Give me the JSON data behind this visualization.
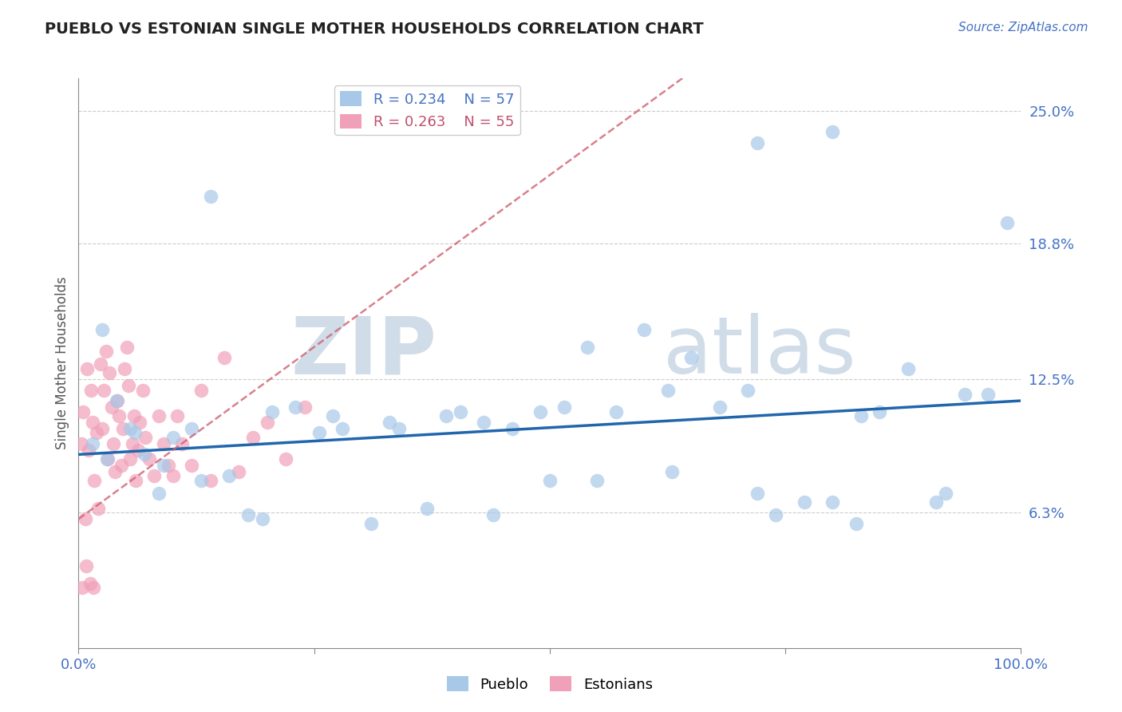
{
  "title": "PUEBLO VS ESTONIAN SINGLE MOTHER HOUSEHOLDS CORRELATION CHART",
  "source": "Source: ZipAtlas.com",
  "xlabel": "",
  "ylabel": "Single Mother Households",
  "xlim": [
    0,
    100
  ],
  "ylim": [
    0,
    26.5
  ],
  "yticks_right": [
    6.3,
    12.5,
    18.8,
    25.0
  ],
  "ytick_labels_right": [
    "6.3%",
    "12.5%",
    "18.8%",
    "25.0%"
  ],
  "xticks": [
    0,
    25,
    50,
    75,
    100
  ],
  "xtick_labels": [
    "0.0%",
    "",
    "",
    "",
    "100.0%"
  ],
  "legend_label1": "R = 0.234    N = 57",
  "legend_label2": "R = 0.263    N = 55",
  "legend_bottom": [
    "Pueblo",
    "Estonians"
  ],
  "pueblo_color": "#a8c8e8",
  "estonian_color": "#f0a0b8",
  "pueblo_line_color": "#2166ac",
  "estonian_line_color": "#d06070",
  "watermark_zip": "ZIP",
  "watermark_atlas": "atlas",
  "watermark_color": "#d0dde8",
  "background_color": "#ffffff",
  "pueblo_x": [
    1.5,
    2.5,
    4.0,
    5.5,
    7.0,
    8.5,
    10.0,
    12.0,
    14.0,
    16.0,
    18.0,
    20.5,
    23.0,
    25.5,
    28.0,
    31.0,
    34.0,
    37.0,
    40.5,
    43.0,
    46.0,
    49.0,
    51.5,
    54.0,
    57.0,
    60.0,
    62.5,
    65.0,
    68.0,
    71.0,
    74.0,
    77.0,
    80.0,
    82.5,
    85.0,
    88.0,
    91.0,
    94.0,
    96.5,
    98.5,
    3.0,
    6.0,
    9.0,
    13.0,
    19.5,
    27.0,
    33.0,
    39.0,
    44.0,
    50.0,
    55.0,
    63.0,
    72.0,
    83.0,
    92.0,
    72.0,
    80.0
  ],
  "pueblo_y": [
    9.5,
    14.8,
    11.5,
    10.2,
    9.0,
    7.2,
    9.8,
    10.2,
    21.0,
    8.0,
    6.2,
    11.0,
    11.2,
    10.0,
    10.2,
    5.8,
    10.2,
    6.5,
    11.0,
    10.5,
    10.2,
    11.0,
    11.2,
    14.0,
    11.0,
    14.8,
    12.0,
    13.5,
    11.2,
    12.0,
    6.2,
    6.8,
    6.8,
    5.8,
    11.0,
    13.0,
    6.8,
    11.8,
    11.8,
    19.8,
    8.8,
    10.0,
    8.5,
    7.8,
    6.0,
    10.8,
    10.5,
    10.8,
    6.2,
    7.8,
    7.8,
    8.2,
    7.2,
    10.8,
    7.2,
    23.5,
    24.0
  ],
  "estonian_x": [
    0.3,
    0.5,
    0.7,
    0.9,
    1.1,
    1.3,
    1.5,
    1.7,
    1.9,
    2.1,
    2.3,
    2.5,
    2.7,
    2.9,
    3.1,
    3.3,
    3.5,
    3.7,
    3.9,
    4.1,
    4.3,
    4.5,
    4.7,
    4.9,
    5.1,
    5.3,
    5.5,
    5.7,
    5.9,
    6.1,
    6.3,
    6.5,
    6.8,
    7.1,
    7.5,
    8.0,
    8.5,
    9.0,
    9.5,
    10.0,
    10.5,
    11.0,
    12.0,
    13.0,
    14.0,
    15.5,
    17.0,
    18.5,
    20.0,
    22.0,
    24.0,
    0.4,
    0.8,
    1.2,
    1.6
  ],
  "estonian_y": [
    9.5,
    11.0,
    6.0,
    13.0,
    9.2,
    12.0,
    10.5,
    7.8,
    10.0,
    6.5,
    13.2,
    10.2,
    12.0,
    13.8,
    8.8,
    12.8,
    11.2,
    9.5,
    8.2,
    11.5,
    10.8,
    8.5,
    10.2,
    13.0,
    14.0,
    12.2,
    8.8,
    9.5,
    10.8,
    7.8,
    9.2,
    10.5,
    12.0,
    9.8,
    8.8,
    8.0,
    10.8,
    9.5,
    8.5,
    8.0,
    10.8,
    9.5,
    8.5,
    12.0,
    7.8,
    13.5,
    8.2,
    9.8,
    10.5,
    8.8,
    11.2,
    2.8,
    3.8,
    3.0,
    2.8
  ]
}
